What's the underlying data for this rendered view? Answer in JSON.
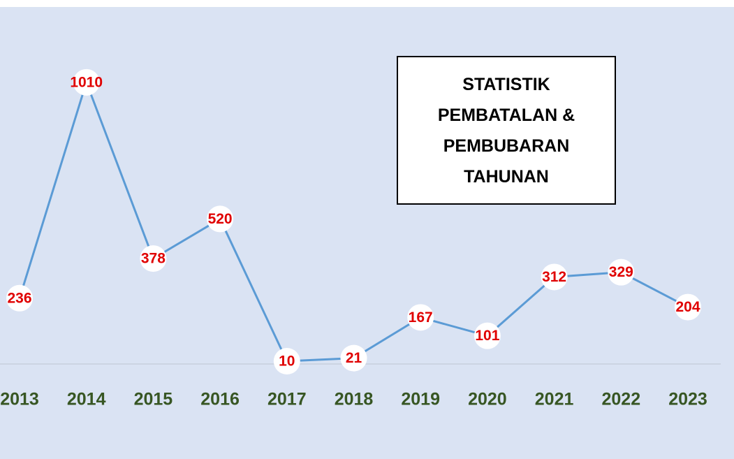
{
  "chart_data": {
    "type": "line",
    "title": "STATISTIK PEMBATALAN & PEMBUBARAN TAHUNAN",
    "categories": [
      "2013",
      "2014",
      "2015",
      "2016",
      "2017",
      "2018",
      "2019",
      "2020",
      "2021",
      "2022",
      "2023"
    ],
    "values": [
      236,
      1010,
      378,
      520,
      10,
      21,
      167,
      101,
      312,
      329,
      204
    ],
    "color": "#5b9bd5",
    "label_color": "#e00000",
    "category_color": "#375623",
    "ylim": [
      0,
      1200
    ]
  }
}
